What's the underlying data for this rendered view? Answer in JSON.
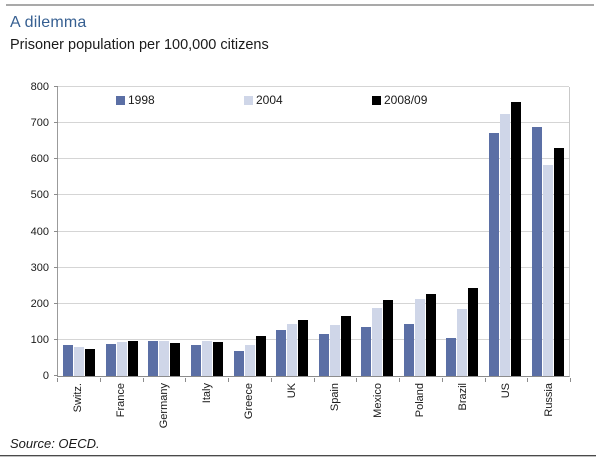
{
  "page": {
    "title": "A dilemma",
    "subtitle": "Prisoner population per 100,000 citizens",
    "source": "Source: OECD."
  },
  "chart_data": {
    "type": "bar",
    "title": "A dilemma",
    "subtitle": "Prisoner population per 100,000 citizens",
    "source": "Source: OECD.",
    "categories": [
      "Switz.",
      "France",
      "Germany",
      "Italy",
      "Greece",
      "UK",
      "Spain",
      "Mexico",
      "Poland",
      "Brazil",
      "US",
      "Russia"
    ],
    "series": [
      {
        "name": "1998",
        "color": "#5b6fa5",
        "values": [
          85,
          88,
          96,
          87,
          70,
          128,
          116,
          136,
          144,
          106,
          672,
          690
        ]
      },
      {
        "name": "2004",
        "color": "#cfd6e8",
        "values": [
          80,
          93,
          98,
          98,
          85,
          144,
          141,
          188,
          214,
          186,
          725,
          585
        ]
      },
      {
        "name": "2008/09",
        "color": "#000000",
        "values": [
          76,
          96,
          92,
          93,
          112,
          155,
          166,
          210,
          226,
          244,
          758,
          630
        ]
      }
    ],
    "xlabel": "",
    "ylabel": "",
    "ylim": [
      0,
      800
    ],
    "yticks": [
      0,
      100,
      200,
      300,
      400,
      500,
      600,
      700,
      800
    ],
    "grid": true,
    "legend_position": "top-inside",
    "colors": {
      "title_blue": "#365f91",
      "gridline": "#d5d5d5",
      "axis": "#8c8c8c",
      "text": "#1a1a1a"
    }
  }
}
